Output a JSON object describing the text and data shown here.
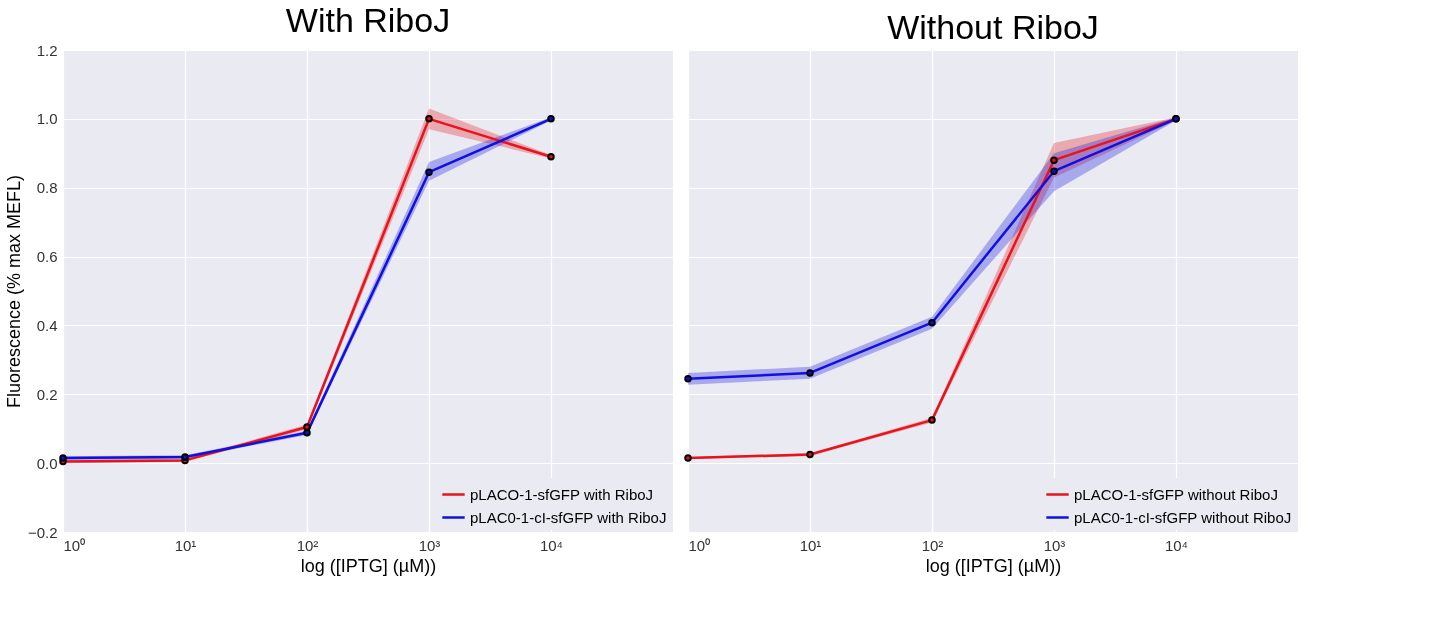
{
  "chart_data": [
    {
      "type": "line",
      "title": "With RiboJ",
      "xlabel": "log ([IPTG] (µM))",
      "ylabel": "Fluorescence (% max MEFL)",
      "log": "x",
      "x": [
        1,
        10,
        100,
        1000,
        10000
      ],
      "series": [
        {
          "name": "pLACO-1-sfGFP with RiboJ",
          "color": "#e8131b",
          "values": [
            0.005,
            0.008,
            0.105,
            1.0,
            0.89
          ],
          "lower": [
            0.0,
            0.004,
            0.098,
            0.97,
            0.885
          ],
          "upper": [
            0.01,
            0.012,
            0.112,
            1.03,
            0.895
          ]
        },
        {
          "name": "pLAC0-1-cI-sfGFP with RiboJ",
          "color": "#1010e0",
          "values": [
            0.015,
            0.018,
            0.088,
            0.845,
            1.0
          ],
          "lower": [
            0.01,
            0.013,
            0.082,
            0.82,
            0.995
          ],
          "upper": [
            0.02,
            0.023,
            0.094,
            0.875,
            1.005
          ]
        }
      ],
      "xlim": [
        1,
        100000
      ],
      "ylim": [
        -0.2,
        1.2
      ],
      "xticks": [
        {
          "value": 1,
          "label": "10⁰"
        },
        {
          "value": 10,
          "label": "10¹"
        },
        {
          "value": 100,
          "label": "10²"
        },
        {
          "value": 1000,
          "label": "10³"
        },
        {
          "value": 10000,
          "label": "10⁴"
        }
      ],
      "yticks": [
        {
          "value": -0.2,
          "label": "−0.2"
        },
        {
          "value": 0,
          "label": "0.0"
        },
        {
          "value": 0.2,
          "label": "0.2"
        },
        {
          "value": 0.4,
          "label": "0.4"
        },
        {
          "value": 0.6,
          "label": "0.6"
        },
        {
          "value": 0.8,
          "label": "0.8"
        },
        {
          "value": 1.0,
          "label": "1.0"
        },
        {
          "value": 1.2,
          "label": "1.2"
        }
      ],
      "grid": true,
      "legend": "bottom right",
      "marker": "circle",
      "line_style": "solid"
    },
    {
      "type": "line",
      "title": "Without RiboJ",
      "xlabel": "log ([IPTG] (µM))",
      "log": "x",
      "x": [
        1,
        10,
        100,
        1000,
        10000
      ],
      "series": [
        {
          "name": "pLACO-1-sfGFP without RiboJ",
          "color": "#e8131b",
          "values": [
            0.015,
            0.025,
            0.125,
            0.88,
            1.0
          ],
          "lower": [
            0.012,
            0.021,
            0.118,
            0.83,
            0.995
          ],
          "upper": [
            0.018,
            0.029,
            0.132,
            0.93,
            1.005
          ]
        },
        {
          "name": "pLAC0-1-cI-sfGFP without RiboJ",
          "color": "#1010e0",
          "values": [
            0.245,
            0.262,
            0.408,
            0.848,
            1.0
          ],
          "lower": [
            0.228,
            0.245,
            0.39,
            0.79,
            0.995
          ],
          "upper": [
            0.262,
            0.28,
            0.425,
            0.9,
            1.005
          ]
        }
      ],
      "xlim": [
        1,
        100000
      ],
      "ylim": [
        -0.2,
        1.2
      ],
      "xticks": [
        {
          "value": 1,
          "label": "10⁰"
        },
        {
          "value": 10,
          "label": "10¹"
        },
        {
          "value": 100,
          "label": "10²"
        },
        {
          "value": 1000,
          "label": "10³"
        },
        {
          "value": 10000,
          "label": "10⁴"
        }
      ],
      "yticks": [
        -0.2,
        0,
        0.2,
        0.4,
        0.6,
        0.8,
        1.0,
        1.2
      ],
      "grid": true,
      "legend": "bottom right",
      "marker": "circle",
      "line_style": "solid",
      "tick_labels": "x"
    }
  ]
}
